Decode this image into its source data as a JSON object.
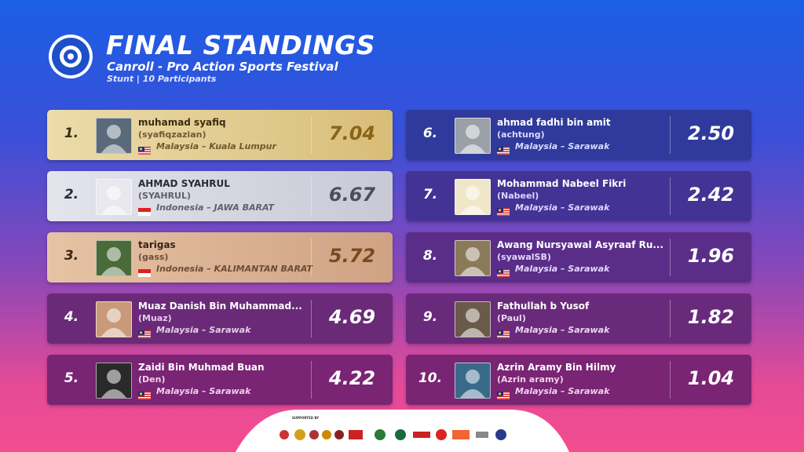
{
  "header": {
    "title": "FINAL STANDINGS",
    "subtitle": "Canroll - Pro Action Sports Festival",
    "info": "Stunt | 10 Participants"
  },
  "standings": [
    {
      "rank": "1.",
      "name": "muhamad syafiq",
      "handle": "(syafiqzazian)",
      "location": "Malaysia – Kuala Lumpur",
      "score": "7.04"
    },
    {
      "rank": "2.",
      "name": "AHMAD SYAHRUL",
      "handle": "(SYAHRUL)",
      "location": "Indonesia – JAWA BARAT",
      "score": "6.67"
    },
    {
      "rank": "3.",
      "name": "tarigas",
      "handle": "(gass)",
      "location": "Indonesia – KALIMANTAN BARAT",
      "score": "5.72"
    },
    {
      "rank": "4.",
      "name": "Muaz Danish Bin Muhammad...",
      "handle": "(Muaz)",
      "location": "Malaysia – Sarawak",
      "score": "4.69"
    },
    {
      "rank": "5.",
      "name": "Zaidi Bin Muhmad Buan",
      "handle": "(Den)",
      "location": "Malaysia – Sarawak",
      "score": "4.22"
    },
    {
      "rank": "6.",
      "name": "ahmad fadhi bin amit",
      "handle": "(achtung)",
      "location": "Malaysia – Sarawak",
      "score": "2.50"
    },
    {
      "rank": "7.",
      "name": "Mohammad Nabeel Fikri",
      "handle": "(Nabeel)",
      "location": "Malaysia – Sarawak",
      "score": "2.42"
    },
    {
      "rank": "8.",
      "name": "Awang Nursyawal Asyraaf Ru...",
      "handle": "(syawalSB)",
      "location": "Malaysia – Sarawak",
      "score": "1.96"
    },
    {
      "rank": "9.",
      "name": "Fathullah b Yusof",
      "handle": "(Paul)",
      "location": "Malaysia – Sarawak",
      "score": "1.82"
    },
    {
      "rank": "10.",
      "name": "Azrin Aramy Bin Hilmy",
      "handle": "(Azrin aramy)",
      "location": "Malaysia – Sarawak",
      "score": "1.04"
    }
  ],
  "footer": {
    "label": "SUPPORTED BY"
  }
}
